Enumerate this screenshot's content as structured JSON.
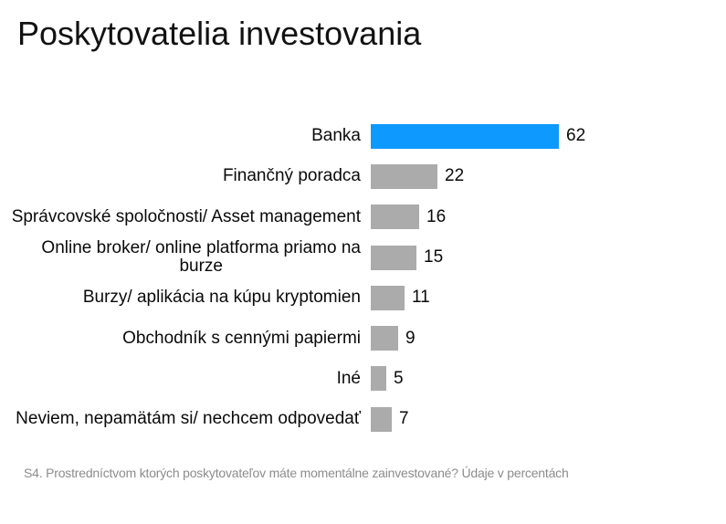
{
  "header": {
    "title": "Poskytovatelia investovania"
  },
  "chart_data": {
    "type": "bar",
    "orientation": "horizontal",
    "title": "Poskytovatelia investovania",
    "categories": [
      "Banka",
      "Finančný poradca",
      "Správcovské spoločnosti/ Asset management",
      "Online broker/ online platforma priamo na\nburze",
      "Burzy/ aplikácia na kúpu kryptomien",
      "Obchodník s cennými papiermi",
      "Iné",
      "Neviem, nepamätám si/ nechcem odpovedať"
    ],
    "values": [
      62,
      22,
      16,
      15,
      11,
      9,
      5,
      7
    ],
    "unit": "percent",
    "xlim": [
      0,
      62
    ],
    "grid": false,
    "legend": false,
    "data_labels": true,
    "highlight_index": 0,
    "highlight_color": "#0d99ff",
    "bar_color": "#ababab",
    "source_note": "S4. Prostredníctvom ktorých poskytovateľov máte momentálne zainvestované? Údaje v percentách"
  },
  "colors": {
    "accent_blue": "#0d99ff",
    "bar_gray": "#ababab",
    "text": "#111111",
    "note_gray": "#8c8c8c",
    "background": "#ffffff"
  }
}
